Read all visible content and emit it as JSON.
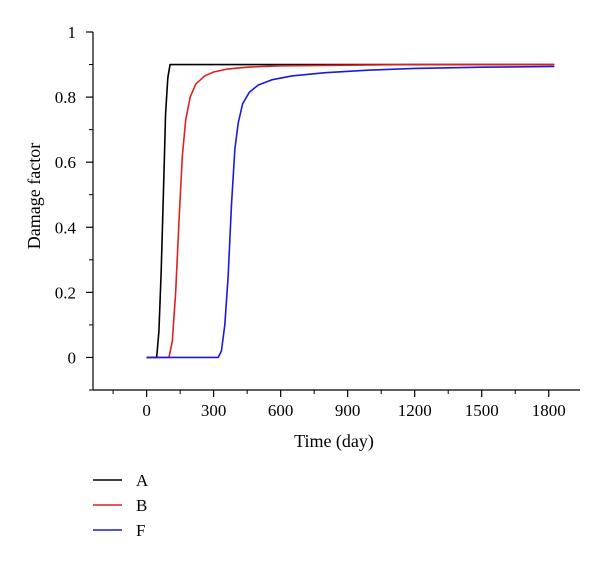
{
  "chart_data": {
    "type": "line",
    "xlabel": "Time (day)",
    "ylabel": "Damage factor",
    "xlim": [
      -240,
      1940
    ],
    "ylim": [
      -0.1,
      1.0
    ],
    "x_ticks": [
      "0",
      "300",
      "600",
      "900",
      "1200",
      "1500",
      "1800"
    ],
    "x_tick_values": [
      0,
      300,
      600,
      900,
      1200,
      1500,
      1800
    ],
    "y_ticks": [
      "0",
      "0.2",
      "0.4",
      "0.6",
      "0.8",
      "1"
    ],
    "y_tick_values": [
      0,
      0.2,
      0.4,
      0.6,
      0.8,
      1.0
    ],
    "legend_position": "bottom-left",
    "series": [
      {
        "name": "A",
        "color": "#000000",
        "x": [
          0,
          45,
          55,
          65,
          75,
          85,
          95,
          105,
          300,
          600,
          900,
          1200,
          1500,
          1825
        ],
        "y": [
          0,
          0,
          0.08,
          0.26,
          0.5,
          0.75,
          0.86,
          0.9,
          0.9,
          0.9,
          0.9,
          0.9,
          0.9,
          0.9
        ]
      },
      {
        "name": "B",
        "color": "#e02020",
        "x": [
          0,
          100,
          115,
          130,
          145,
          160,
          175,
          195,
          220,
          260,
          300,
          360,
          450,
          600,
          900,
          1200,
          1500,
          1825
        ],
        "y": [
          0,
          0,
          0.05,
          0.2,
          0.42,
          0.62,
          0.73,
          0.8,
          0.84,
          0.865,
          0.877,
          0.886,
          0.892,
          0.896,
          0.898,
          0.9,
          0.9,
          0.9
        ]
      },
      {
        "name": "F",
        "color": "#1a1adc",
        "x": [
          0,
          320,
          335,
          350,
          365,
          380,
          395,
          410,
          430,
          460,
          500,
          560,
          650,
          800,
          1000,
          1200,
          1500,
          1825
        ],
        "y": [
          0,
          0,
          0.02,
          0.1,
          0.25,
          0.47,
          0.64,
          0.72,
          0.78,
          0.815,
          0.837,
          0.853,
          0.865,
          0.875,
          0.883,
          0.888,
          0.892,
          0.894
        ]
      }
    ]
  }
}
